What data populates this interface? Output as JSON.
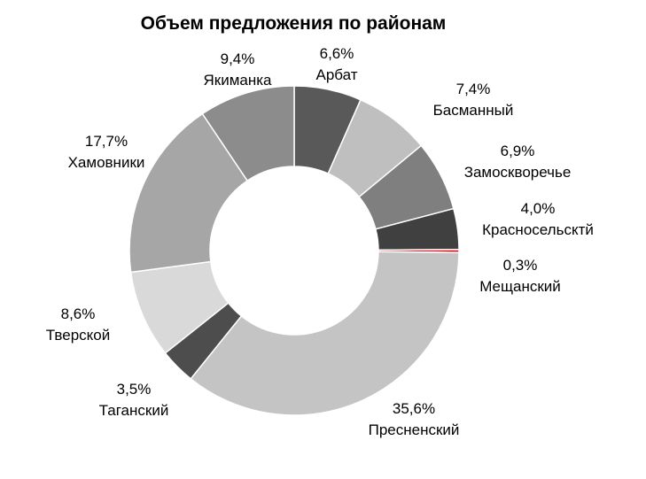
{
  "chart_data": {
    "type": "pie",
    "subtype": "donut",
    "title": "Объем предложения по районам",
    "legend": "none",
    "slices": [
      {
        "name": "Арбат",
        "value": 6.6,
        "label": "6,6%",
        "color": "#595959"
      },
      {
        "name": "Басманный",
        "value": 7.4,
        "label": "7,4%",
        "color": "#bfbfbf"
      },
      {
        "name": "Замоскворечье",
        "value": 6.9,
        "label": "6,9%",
        "color": "#7f7f7f"
      },
      {
        "name": "Красносельсктй",
        "value": 4.0,
        "label": "4,0%",
        "color": "#404040"
      },
      {
        "name": "Мещанский",
        "value": 0.3,
        "label": "0,3%",
        "color": "#e8202a"
      },
      {
        "name": "Пресненский",
        "value": 35.6,
        "label": "35,6%",
        "color": "#c4c4c4"
      },
      {
        "name": "Таганский",
        "value": 3.5,
        "label": "3,5%",
        "color": "#4d4d4d"
      },
      {
        "name": "Тверской",
        "value": 8.6,
        "label": "8,6%",
        "color": "#d9d9d9"
      },
      {
        "name": "Хамовники",
        "value": 17.7,
        "label": "17,7%",
        "color": "#a6a6a6"
      },
      {
        "name": "Якиманка",
        "value": 9.4,
        "label": "9,4%",
        "color": "#8c8c8c"
      }
    ]
  }
}
